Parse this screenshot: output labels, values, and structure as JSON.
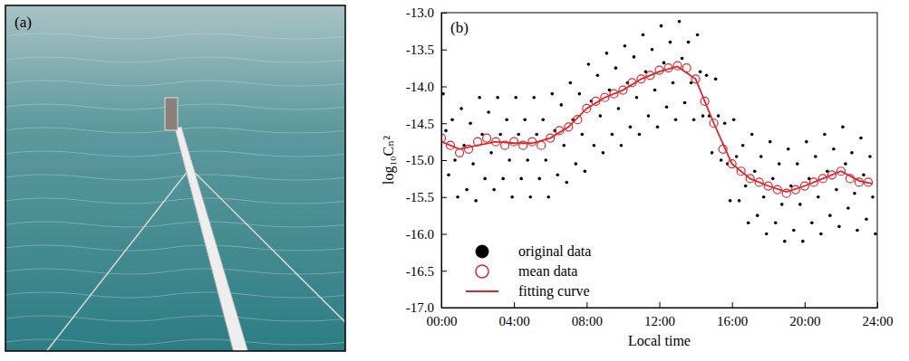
{
  "image_panel": {
    "label": "(a)"
  },
  "chart_data": {
    "type": "scatter",
    "panel_label": "(b)",
    "x_label": "Local time",
    "y_label": "log₁₀Cₙ²",
    "xlim": [
      0,
      24
    ],
    "ylim": [
      -17,
      -13
    ],
    "xticks": [
      {
        "value": 0,
        "label": "00:00"
      },
      {
        "value": 4,
        "label": "04:00"
      },
      {
        "value": 8,
        "label": "08:00"
      },
      {
        "value": 12,
        "label": "12:00"
      },
      {
        "value": 16,
        "label": "16:00"
      },
      {
        "value": 20,
        "label": "20:00"
      },
      {
        "value": 24,
        "label": "24:00"
      }
    ],
    "yticks": [
      {
        "value": -17,
        "label": "-17.0"
      },
      -16.5,
      {
        "value": -16,
        "label": "-16.0"
      },
      -15.5,
      {
        "value": -15,
        "label": "-15.0"
      },
      -14.5,
      {
        "value": -14,
        "label": "-14.0"
      },
      -13.5,
      {
        "value": -13,
        "label": "-13.0"
      }
    ],
    "legend": "lower left",
    "series": [
      {
        "name": "original data",
        "color": "#000000",
        "marker": "filled circle",
        "x": [
          0.1,
          0.25,
          0.4,
          0.6,
          0.75,
          0.9,
          1.1,
          1.25,
          1.4,
          1.6,
          1.75,
          1.9,
          2.1,
          2.25,
          2.4,
          2.6,
          2.75,
          2.9,
          3.1,
          3.25,
          3.4,
          3.6,
          3.75,
          3.9,
          4.1,
          4.25,
          4.4,
          4.6,
          4.75,
          4.9,
          5.1,
          5.25,
          5.4,
          5.6,
          5.75,
          5.9,
          6.1,
          6.25,
          6.4,
          6.6,
          6.75,
          6.9,
          7.1,
          7.25,
          7.4,
          7.6,
          7.75,
          7.9,
          8.1,
          8.25,
          8.4,
          8.6,
          8.75,
          8.9,
          9.1,
          9.25,
          9.4,
          9.6,
          9.75,
          9.9,
          10.1,
          10.25,
          10.4,
          10.6,
          10.75,
          10.9,
          11.1,
          11.25,
          11.4,
          11.6,
          11.75,
          11.9,
          12.1,
          12.25,
          12.4,
          12.6,
          12.75,
          12.9,
          13.1,
          13.25,
          13.4,
          13.6,
          13.75,
          13.9,
          14.1,
          14.25,
          14.4,
          14.6,
          14.75,
          14.9,
          15.1,
          15.25,
          15.4,
          15.6,
          15.75,
          15.9,
          16.1,
          16.25,
          16.4,
          16.6,
          16.75,
          16.9,
          17.1,
          17.25,
          17.4,
          17.6,
          17.75,
          17.9,
          18.1,
          18.25,
          18.4,
          18.6,
          18.75,
          18.9,
          19.1,
          19.25,
          19.4,
          19.6,
          19.75,
          19.9,
          20.1,
          20.25,
          20.4,
          20.6,
          20.75,
          20.9,
          21.1,
          21.25,
          21.4,
          21.6,
          21.75,
          21.9,
          22.1,
          22.25,
          22.4,
          22.6,
          22.75,
          22.9,
          23.1,
          23.25,
          23.4,
          23.6,
          23.75,
          23.9
        ],
        "values": [
          -14.1,
          -14.6,
          -15.2,
          -14.45,
          -15.0,
          -15.5,
          -14.3,
          -14.8,
          -15.4,
          -14.5,
          -15.05,
          -15.55,
          -14.15,
          -14.65,
          -15.25,
          -14.35,
          -14.9,
          -15.4,
          -14.15,
          -14.65,
          -15.25,
          -14.45,
          -15.0,
          -15.5,
          -14.15,
          -14.65,
          -15.25,
          -14.45,
          -15.0,
          -15.5,
          -14.15,
          -14.65,
          -15.25,
          -14.45,
          -15.0,
          -15.5,
          -14.1,
          -14.6,
          -15.2,
          -14.25,
          -14.8,
          -15.3,
          -13.95,
          -14.45,
          -15.05,
          -14.1,
          -14.65,
          -15.15,
          -13.7,
          -14.2,
          -14.8,
          -13.85,
          -14.4,
          -14.9,
          -13.55,
          -14.05,
          -14.65,
          -13.75,
          -14.3,
          -14.8,
          -13.45,
          -13.95,
          -14.55,
          -13.6,
          -14.15,
          -14.65,
          -13.3,
          -13.8,
          -14.4,
          -13.5,
          -14.05,
          -14.55,
          -13.18,
          -13.68,
          -14.28,
          -13.4,
          -13.95,
          -14.45,
          -13.12,
          -13.62,
          -14.22,
          -13.4,
          -13.95,
          -14.45,
          -13.3,
          -13.8,
          -14.4,
          -13.85,
          -14.4,
          -14.9,
          -13.9,
          -14.4,
          -15.0,
          -14.5,
          -15.05,
          -15.55,
          -14.45,
          -14.95,
          -15.55,
          -14.8,
          -15.35,
          -15.85,
          -14.65,
          -15.15,
          -15.75,
          -14.95,
          -15.5,
          -16.0,
          -14.75,
          -15.25,
          -15.85,
          -15.05,
          -15.6,
          -16.1,
          -14.85,
          -15.35,
          -15.95,
          -15.05,
          -15.6,
          -16.1,
          -14.75,
          -15.25,
          -15.85,
          -14.95,
          -15.5,
          -16.0,
          -14.65,
          -15.15,
          -15.75,
          -14.85,
          -15.4,
          -15.9,
          -14.55,
          -15.05,
          -15.65,
          -14.9,
          -15.45,
          -15.95,
          -14.7,
          -15.2,
          -15.8,
          -14.95,
          -15.5,
          -16.0
        ]
      },
      {
        "name": "mean data",
        "color": "#e3232c",
        "marker": "open circle",
        "x": [
          0,
          0.5,
          1,
          1.5,
          2,
          2.5,
          3,
          3.5,
          4,
          4.5,
          5,
          5.5,
          6,
          6.5,
          7,
          7.5,
          8,
          8.5,
          9,
          9.5,
          10,
          10.5,
          11,
          11.5,
          12,
          12.5,
          13,
          13.5,
          14,
          14.5,
          15,
          15.5,
          16,
          16.5,
          17,
          17.5,
          18,
          18.5,
          19,
          19.5,
          20,
          20.5,
          21,
          21.5,
          22,
          22.5,
          23,
          23.5
        ],
        "values": [
          -14.7,
          -14.8,
          -14.9,
          -14.85,
          -14.75,
          -14.7,
          -14.75,
          -14.8,
          -14.75,
          -14.8,
          -14.75,
          -14.8,
          -14.7,
          -14.6,
          -14.55,
          -14.45,
          -14.3,
          -14.2,
          -14.15,
          -14.1,
          -14.05,
          -13.95,
          -13.9,
          -13.85,
          -13.78,
          -13.75,
          -13.72,
          -13.75,
          -13.9,
          -14.2,
          -14.5,
          -14.85,
          -15.05,
          -15.15,
          -15.25,
          -15.3,
          -15.35,
          -15.4,
          -15.45,
          -15.4,
          -15.35,
          -15.3,
          -15.25,
          -15.2,
          -15.15,
          -15.25,
          -15.3,
          -15.3
        ]
      },
      {
        "name": "fitting curve",
        "color": "#e3232c",
        "type": "line",
        "x": [
          0,
          1,
          2,
          3,
          4,
          5,
          6,
          7,
          8,
          9,
          10,
          11,
          12,
          13,
          14,
          15,
          16,
          17,
          18,
          19,
          20,
          21,
          22,
          23,
          23.75
        ],
        "values": [
          -14.75,
          -14.85,
          -14.8,
          -14.75,
          -14.77,
          -14.77,
          -14.7,
          -14.55,
          -14.3,
          -14.15,
          -14.05,
          -13.9,
          -13.8,
          -13.73,
          -13.9,
          -14.5,
          -15.05,
          -15.25,
          -15.35,
          -15.43,
          -15.35,
          -15.25,
          -15.15,
          -15.28,
          -15.32
        ]
      }
    ]
  }
}
